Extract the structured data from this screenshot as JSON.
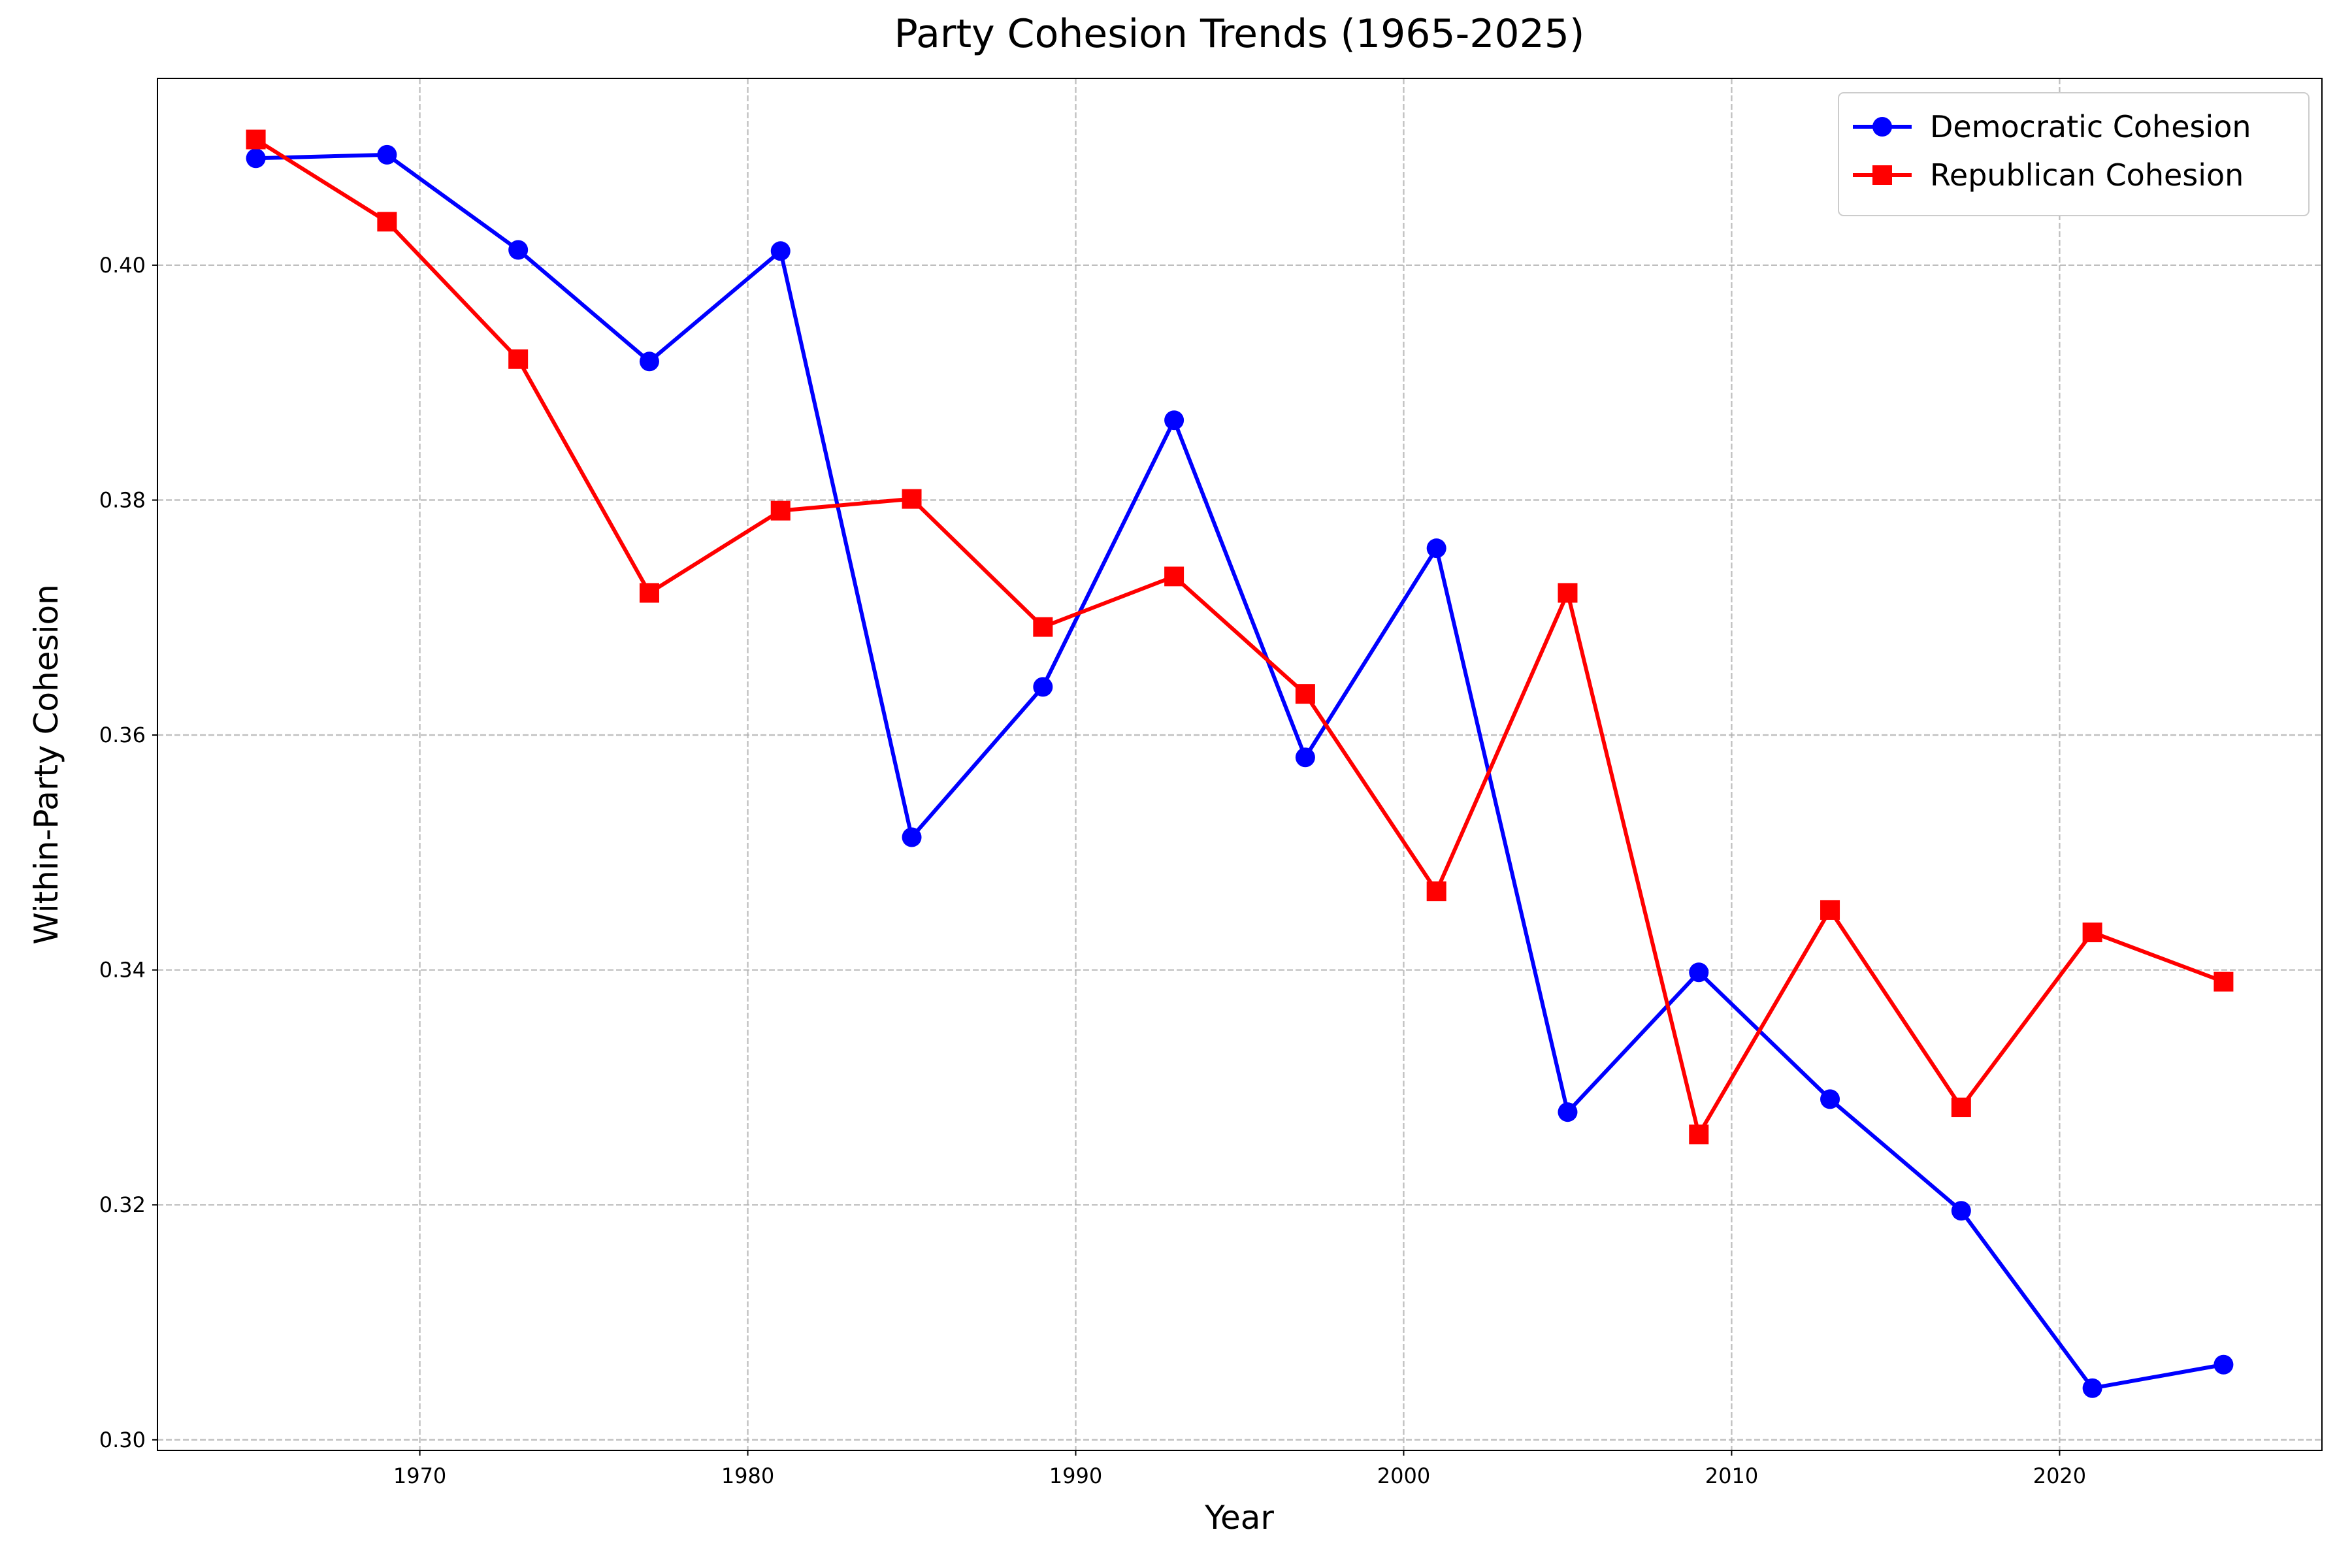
{
  "chart_data": {
    "type": "line",
    "title": "Party Cohesion Trends (1965-2025)",
    "xlabel": "Year",
    "ylabel": "Within-Party Cohesion",
    "x": [
      1965,
      1969,
      1973,
      1977,
      1981,
      1985,
      1989,
      1993,
      1997,
      2001,
      2005,
      2009,
      2013,
      2017,
      2021,
      2025
    ],
    "series": [
      {
        "name": "Democratic Cohesion",
        "color": "#0000ff",
        "marker": "circle",
        "values": [
          0.4091,
          0.4094,
          0.4013,
          0.3918,
          0.4012,
          0.3513,
          0.3641,
          0.3868,
          0.3581,
          0.3759,
          0.3279,
          0.3398,
          0.329,
          0.3195,
          0.3044,
          0.3064
        ]
      },
      {
        "name": "Republican Cohesion",
        "color": "#ff0000",
        "marker": "square",
        "values": [
          0.4107,
          0.4037,
          0.392,
          0.3721,
          0.3791,
          0.3801,
          0.3692,
          0.3735,
          0.3635,
          0.3467,
          0.3721,
          0.326,
          0.3451,
          0.3283,
          0.3432,
          0.339
        ]
      }
    ],
    "xlim": [
      1962,
      2028
    ],
    "xticks": [
      1970,
      1980,
      1990,
      2000,
      2010,
      2020
    ],
    "ylim": [
      0.2991,
      0.4159
    ],
    "yticks": [
      {
        "value": 0.3,
        "label": "0.30"
      },
      0.32,
      0.34,
      0.36,
      0.38,
      {
        "value": 0.4,
        "label": "0.40"
      }
    ],
    "grid": true,
    "legend": "upper right"
  }
}
